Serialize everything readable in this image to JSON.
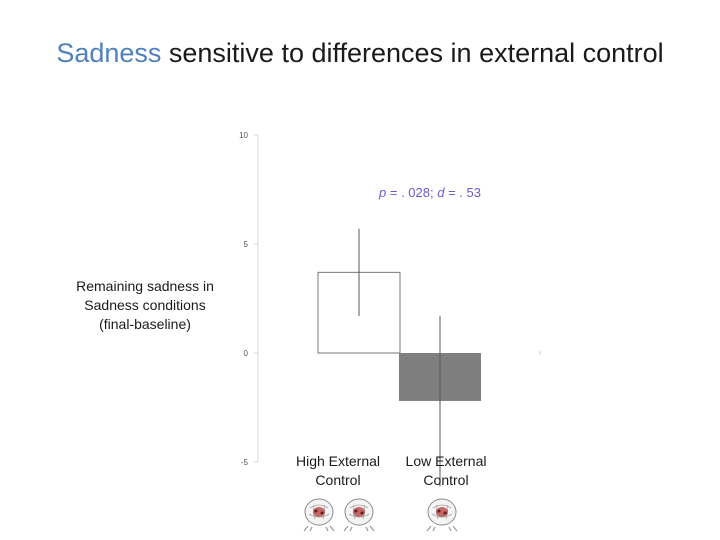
{
  "slide": {
    "title_accent": "Sadness",
    "title_rest": " sensitive to differences in external control"
  },
  "chart_data": {
    "type": "bar",
    "categories": [
      "High External Control",
      "Low External Control"
    ],
    "category_lines": [
      [
        "High External",
        "Control"
      ],
      [
        "Low External",
        "Control"
      ]
    ],
    "values": [
      3.7,
      -2.2
    ],
    "error_plus": [
      2.0,
      3.9
    ],
    "error_minus": [
      2.0,
      3.9
    ],
    "bar_colors": [
      "#ffffff",
      "#7f7f7f"
    ],
    "ylabel_lines": [
      "Remaining sadness in",
      "Sadness conditions",
      "(final-baseline)"
    ],
    "ylim": [
      -5,
      10
    ],
    "yticks": [
      10,
      5,
      0,
      -5
    ],
    "grid": false,
    "annotation": {
      "p_label": "p",
      "p_value": " = . 028; ",
      "d_label": "d",
      "d_value": " = . 53"
    }
  },
  "icons": {
    "high_external_control": [
      "brain-icon",
      "brain-icon"
    ],
    "low_external_control": [
      "brain-icon"
    ]
  }
}
